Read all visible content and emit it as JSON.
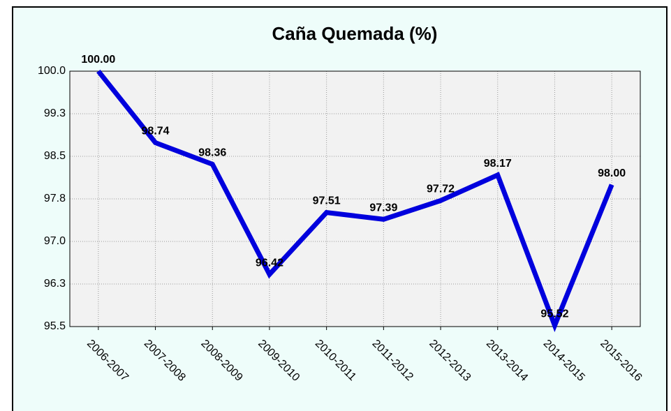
{
  "chart_data": {
    "type": "line",
    "title": "Caña Quemada  (%)",
    "categories": [
      "2006-2007",
      "2007-2008",
      "2008-2009",
      "2009-2010",
      "2010-2011",
      "2011-2012",
      "2012-2013",
      "2013-2014",
      "2014-2015",
      "2015-2016"
    ],
    "series": [
      {
        "name": "Caña Quemada",
        "color": "#0000dd",
        "values": [
          100.0,
          98.74,
          98.36,
          96.42,
          97.51,
          97.39,
          97.72,
          98.17,
          95.52,
          98.0
        ],
        "value_labels": [
          "100.00",
          "98.74",
          "98.36",
          "96.42",
          "97.51",
          "97.39",
          "97.72",
          "98.17",
          "95.52",
          "98.00"
        ]
      }
    ],
    "ylim": [
      95.5,
      100.0
    ],
    "yticks": [
      {
        "value": 95.5,
        "label": "95.5"
      },
      {
        "value": 96.25,
        "label": "96.3"
      },
      {
        "value": 97.0,
        "label": "97.0"
      },
      {
        "value": 97.75,
        "label": "97.8"
      },
      {
        "value": 98.5,
        "label": "98.5"
      },
      {
        "value": 99.25,
        "label": "99.3"
      },
      {
        "value": 100.0,
        "label": "100.0"
      }
    ],
    "grid": true
  }
}
